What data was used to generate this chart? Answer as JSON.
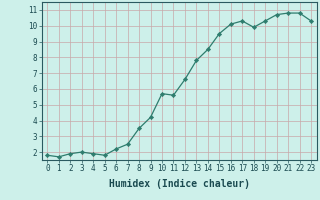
{
  "xlabel": "Humidex (Indice chaleur)",
  "x": [
    0,
    1,
    2,
    3,
    4,
    5,
    6,
    7,
    8,
    9,
    10,
    11,
    12,
    13,
    14,
    15,
    16,
    17,
    18,
    19,
    20,
    21,
    22,
    23
  ],
  "y": [
    1.8,
    1.7,
    1.9,
    2.0,
    1.9,
    1.8,
    2.2,
    2.5,
    3.5,
    4.2,
    5.7,
    5.6,
    6.6,
    7.8,
    8.5,
    9.5,
    10.1,
    10.3,
    9.9,
    10.3,
    10.7,
    10.8,
    10.8,
    10.3
  ],
  "line_color": "#2e7d6e",
  "marker": "D",
  "marker_size": 2.2,
  "line_width": 0.9,
  "bg_color": "#cdf0ea",
  "grid_color": "#c8a8a8",
  "axis_color": "#2a5a60",
  "text_color": "#1a4a50",
  "ylim": [
    1.5,
    11.5
  ],
  "xlim": [
    -0.5,
    23.5
  ],
  "yticks": [
    2,
    3,
    4,
    5,
    6,
    7,
    8,
    9,
    10,
    11
  ],
  "xticks": [
    0,
    1,
    2,
    3,
    4,
    5,
    6,
    7,
    8,
    9,
    10,
    11,
    12,
    13,
    14,
    15,
    16,
    17,
    18,
    19,
    20,
    21,
    22,
    23
  ],
  "tick_fontsize": 5.5,
  "xlabel_fontsize": 7.0
}
